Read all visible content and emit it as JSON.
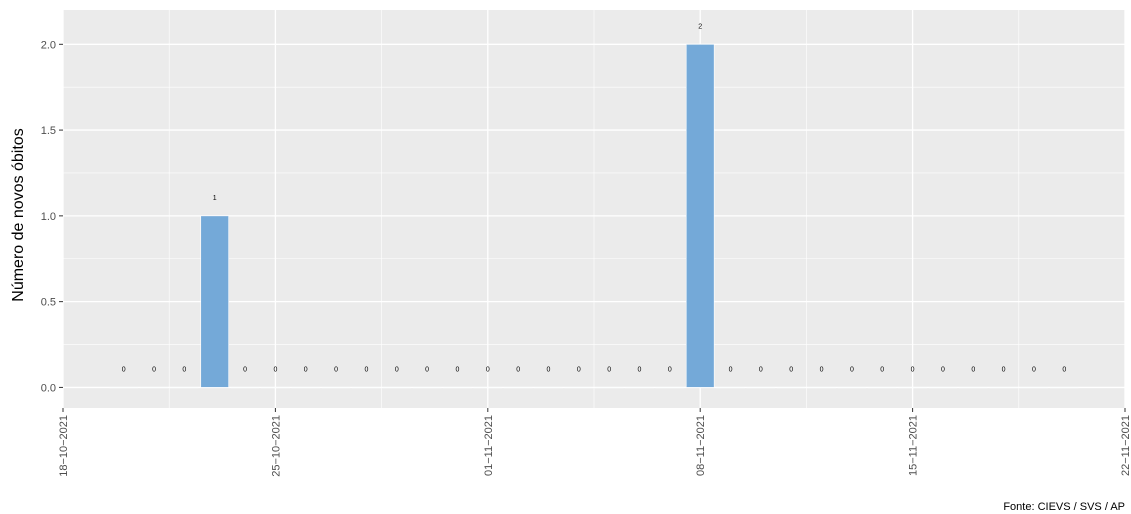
{
  "chart_data": {
    "type": "bar",
    "title": "",
    "xlabel": "",
    "ylabel": "Número de novos óbitos",
    "caption": "Fonte: CIEVS / SVS / AP",
    "colors": {
      "bar": "#74a9d8",
      "panel": "#ebebeb",
      "grid": "#ffffff"
    },
    "ylim": [
      -0.12,
      2.2
    ],
    "xlim": [
      "2021-10-18",
      "2021-11-22"
    ],
    "y_ticks": [
      {
        "value": 0,
        "label": "0.0"
      },
      {
        "value": 0.5,
        "label": "0.5"
      },
      {
        "value": 1,
        "label": "1.0"
      },
      {
        "value": 1.5,
        "label": "1.5"
      },
      {
        "value": 2,
        "label": "2.0"
      }
    ],
    "x_ticks": [
      {
        "date": "2021-10-18",
        "label": "18−10−2021"
      },
      {
        "date": "2021-10-25",
        "label": "25−10−2021"
      },
      {
        "date": "2021-11-01",
        "label": "01−11−2021"
      },
      {
        "date": "2021-11-08",
        "label": "08−11−2021"
      },
      {
        "date": "2021-11-15",
        "label": "15−11−2021"
      },
      {
        "date": "2021-11-22",
        "label": "22−11−2021"
      }
    ],
    "categories": [
      "2021-10-20",
      "2021-10-21",
      "2021-10-22",
      "2021-10-23",
      "2021-10-24",
      "2021-10-25",
      "2021-10-26",
      "2021-10-27",
      "2021-10-28",
      "2021-10-29",
      "2021-10-30",
      "2021-10-31",
      "2021-11-01",
      "2021-11-02",
      "2021-11-03",
      "2021-11-04",
      "2021-11-05",
      "2021-11-06",
      "2021-11-07",
      "2021-11-08",
      "2021-11-09",
      "2021-11-10",
      "2021-11-11",
      "2021-11-12",
      "2021-11-13",
      "2021-11-14",
      "2021-11-15",
      "2021-11-16",
      "2021-11-17",
      "2021-11-18",
      "2021-11-19",
      "2021-11-20"
    ],
    "values": [
      0,
      0,
      0,
      1,
      0,
      0,
      0,
      0,
      0,
      0,
      0,
      0,
      0,
      0,
      0,
      0,
      0,
      0,
      0,
      2,
      0,
      0,
      0,
      0,
      0,
      0,
      0,
      0,
      0,
      0,
      0,
      0
    ]
  }
}
